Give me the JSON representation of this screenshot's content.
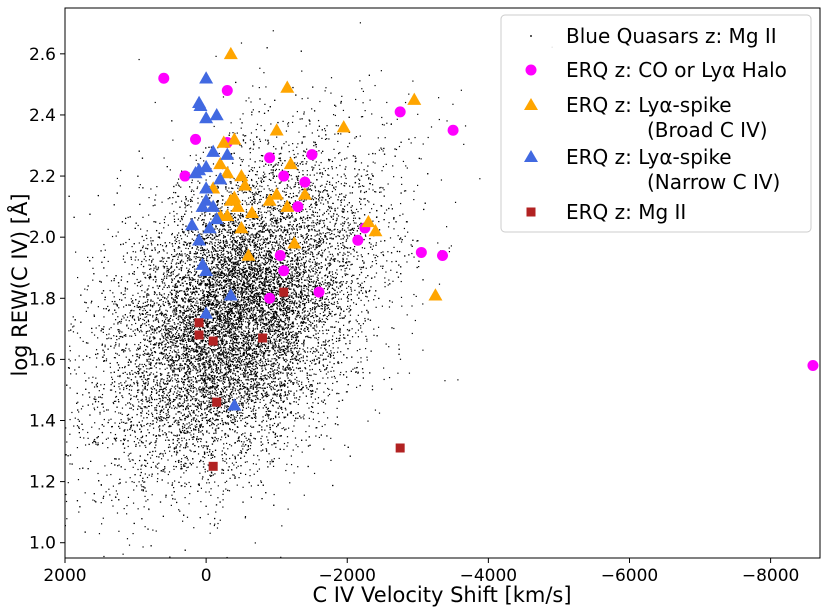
{
  "chart_data": {
    "type": "scatter",
    "xlabel": "C IV Velocity Shift [km/s]",
    "ylabel": "log REW(C IV) [Å]",
    "xlim": [
      2000,
      -8700
    ],
    "ylim": [
      0.95,
      2.75
    ],
    "x_ticks": [
      2000,
      0,
      -2000,
      -4000,
      -6000,
      -8000
    ],
    "x_tick_labels": [
      "2000",
      "0",
      "−2000",
      "−4000",
      "−6000",
      "−8000"
    ],
    "y_ticks": [
      1.0,
      1.2,
      1.4,
      1.6,
      1.8,
      2.0,
      2.2,
      2.4,
      2.6
    ],
    "y_tick_labels": [
      "1.0",
      "1.2",
      "1.4",
      "1.6",
      "1.8",
      "2.0",
      "2.2",
      "2.4",
      "2.6"
    ],
    "grid": false,
    "legend_position": "top-right",
    "series": [
      {
        "name": "Blue Quasars z: Mg II",
        "legend_lines": [
          "Blue Quasars z: Mg II"
        ],
        "marker": "dot",
        "color": "#000000",
        "n_points": 15000,
        "distribution": {
          "x_center": -450,
          "y_center": 1.75,
          "x_sd": 900,
          "y_sd": 0.23,
          "slope": -0.00011
        }
      },
      {
        "name": "ERQ z: CO or Lyα Halo",
        "legend_lines": [
          "ERQ z: CO or Lyα Halo"
        ],
        "marker": "circle",
        "color": "#ff00ff",
        "points": [
          {
            "x": 600,
            "y": 2.52
          },
          {
            "x": -300,
            "y": 2.48
          },
          {
            "x": 150,
            "y": 2.32
          },
          {
            "x": 300,
            "y": 2.2
          },
          {
            "x": -300,
            "y": 2.31
          },
          {
            "x": -900,
            "y": 2.26
          },
          {
            "x": -1500,
            "y": 2.27
          },
          {
            "x": -1400,
            "y": 2.18
          },
          {
            "x": -1300,
            "y": 2.1
          },
          {
            "x": -1100,
            "y": 2.2
          },
          {
            "x": -1050,
            "y": 1.94
          },
          {
            "x": -1100,
            "y": 1.89
          },
          {
            "x": -900,
            "y": 1.8
          },
          {
            "x": -1600,
            "y": 1.82
          },
          {
            "x": -2150,
            "y": 1.99
          },
          {
            "x": -2250,
            "y": 2.03
          },
          {
            "x": -2750,
            "y": 2.41
          },
          {
            "x": -3050,
            "y": 1.95
          },
          {
            "x": -3350,
            "y": 1.94
          },
          {
            "x": -3500,
            "y": 2.35
          },
          {
            "x": -8600,
            "y": 1.58
          }
        ]
      },
      {
        "name": "ERQ z: Lyα-spike (Broad C IV)",
        "legend_lines": [
          "ERQ z: Lyα-spike",
          "(Broad C IV)"
        ],
        "marker": "triangle",
        "color": "#ffa500",
        "points": [
          {
            "x": -1000,
            "y": 2.35
          },
          {
            "x": -1150,
            "y": 2.49
          },
          {
            "x": -1950,
            "y": 2.36
          },
          {
            "x": -2950,
            "y": 2.45
          },
          {
            "x": -350,
            "y": 2.6
          },
          {
            "x": -250,
            "y": 2.31
          },
          {
            "x": -400,
            "y": 2.32
          },
          {
            "x": -200,
            "y": 2.24
          },
          {
            "x": -300,
            "y": 2.21
          },
          {
            "x": -500,
            "y": 2.2
          },
          {
            "x": -550,
            "y": 2.17
          },
          {
            "x": -350,
            "y": 2.12
          },
          {
            "x": -450,
            "y": 2.1
          },
          {
            "x": -200,
            "y": 2.07
          },
          {
            "x": -300,
            "y": 2.07
          },
          {
            "x": -400,
            "y": 2.13
          },
          {
            "x": -1000,
            "y": 2.14
          },
          {
            "x": -900,
            "y": 2.12
          },
          {
            "x": -1200,
            "y": 2.24
          },
          {
            "x": -1400,
            "y": 2.14
          },
          {
            "x": -1150,
            "y": 2.1
          },
          {
            "x": -500,
            "y": 2.03
          },
          {
            "x": -600,
            "y": 1.94
          },
          {
            "x": -1250,
            "y": 1.98
          },
          {
            "x": -2300,
            "y": 2.05
          },
          {
            "x": -2400,
            "y": 2.02
          },
          {
            "x": -3250,
            "y": 1.81
          },
          {
            "x": -100,
            "y": 2.16
          },
          {
            "x": -650,
            "y": 2.08
          }
        ]
      },
      {
        "name": "ERQ z: Lyα-spike (Narrow C IV)",
        "legend_lines": [
          "ERQ z: Lyα-spike",
          "(Narrow C IV)"
        ],
        "marker": "triangle",
        "color": "#4169e1",
        "points": [
          {
            "x": 0,
            "y": 2.52
          },
          {
            "x": 80,
            "y": 2.43
          },
          {
            "x": 100,
            "y": 2.44
          },
          {
            "x": 0,
            "y": 2.39
          },
          {
            "x": -150,
            "y": 2.4
          },
          {
            "x": -100,
            "y": 2.28
          },
          {
            "x": 100,
            "y": 2.22
          },
          {
            "x": 0,
            "y": 2.16
          },
          {
            "x": 0,
            "y": 2.12
          },
          {
            "x": 50,
            "y": 2.1
          },
          {
            "x": -100,
            "y": 2.1
          },
          {
            "x": 200,
            "y": 2.04
          },
          {
            "x": 100,
            "y": 1.99
          },
          {
            "x": 50,
            "y": 1.91
          },
          {
            "x": 0,
            "y": 1.89
          },
          {
            "x": -350,
            "y": 1.81
          },
          {
            "x": 0,
            "y": 1.75
          },
          {
            "x": -400,
            "y": 1.45
          },
          {
            "x": -300,
            "y": 2.27
          },
          {
            "x": -150,
            "y": 2.06
          },
          {
            "x": 150,
            "y": 2.21
          },
          {
            "x": -200,
            "y": 2.19
          },
          {
            "x": -50,
            "y": 2.03
          },
          {
            "x": 0,
            "y": 2.23
          }
        ]
      },
      {
        "name": "ERQ z: Mg II",
        "legend_lines": [
          "ERQ z: Mg II"
        ],
        "marker": "square",
        "color": "#b22222",
        "points": [
          {
            "x": 100,
            "y": 1.72
          },
          {
            "x": 100,
            "y": 1.68
          },
          {
            "x": -100,
            "y": 1.66
          },
          {
            "x": -800,
            "y": 1.67
          },
          {
            "x": -1100,
            "y": 1.82
          },
          {
            "x": -150,
            "y": 1.46
          },
          {
            "x": -100,
            "y": 1.25
          },
          {
            "x": -2750,
            "y": 1.31
          }
        ]
      }
    ]
  }
}
